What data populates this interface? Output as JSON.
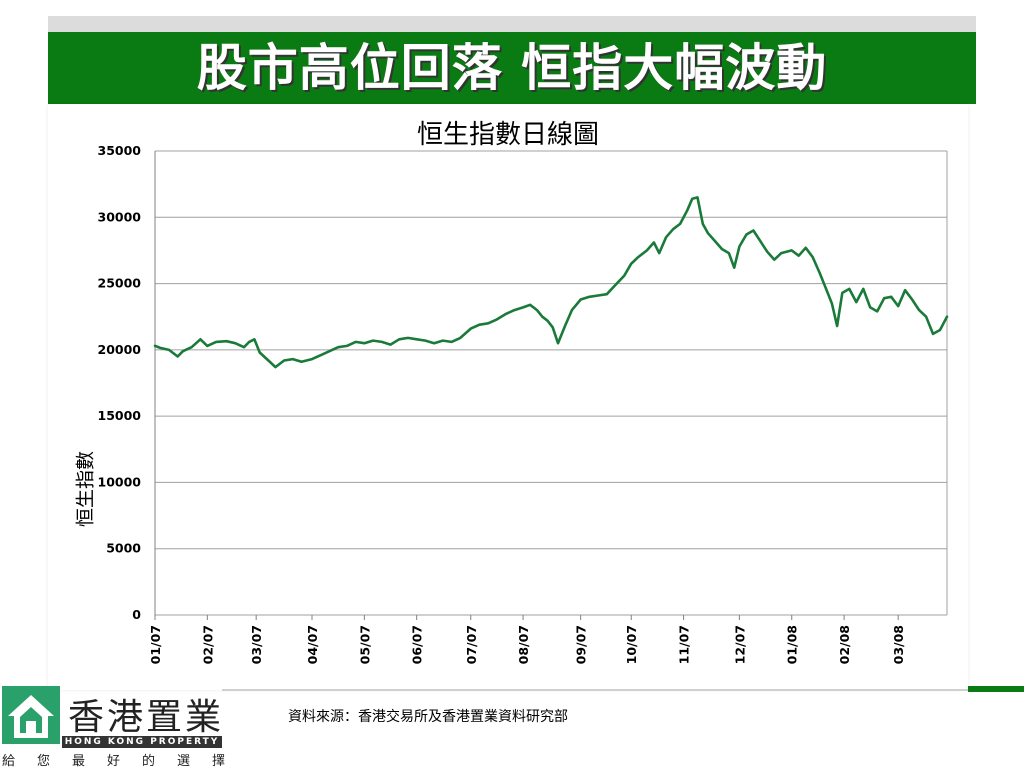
{
  "slide": {
    "title": "股市高位回落  恒指大幅波動",
    "source_note": "資料來源：香港交易所及香港置業資料研究部"
  },
  "logo": {
    "name_cn": "香港置業",
    "name_en": "HONG KONG PROPERTY",
    "slogan": "給您最好的選擇",
    "icon": "house-icon"
  },
  "colors": {
    "title_bar": "#0a7a12",
    "series_line": "#1a7a3a"
  },
  "chart_data": {
    "type": "line",
    "title": "恒生指數日線圖",
    "xlabel": "",
    "ylabel": "恒生指數",
    "ylim": [
      0,
      35000
    ],
    "yticks": [
      0,
      5000,
      10000,
      15000,
      20000,
      25000,
      30000,
      35000
    ],
    "ytick_labels": [
      "0",
      "5000",
      "10000",
      "15000",
      "20000",
      "25000",
      "30000",
      "35000"
    ],
    "xticks": [
      "2007-01-02",
      "2007-02-01",
      "2007-03-01",
      "2007-04-02",
      "2007-05-02",
      "2007-06-01",
      "2007-07-02",
      "2007-08-01",
      "2007-09-03",
      "2007-10-02",
      "2007-11-01",
      "2007-12-03",
      "2008-01-02",
      "2008-02-01",
      "2008-03-03"
    ],
    "xtick_labels": [
      "01/07",
      "02/07",
      "03/07",
      "04/07",
      "05/07",
      "06/07",
      "07/07",
      "08/07",
      "09/07",
      "10/07",
      "11/07",
      "12/07",
      "01/08",
      "02/08",
      "03/08"
    ],
    "xlim": [
      "2007-01-02",
      "2008-03-31"
    ],
    "grid": "horizontal",
    "legend": "none",
    "series": [
      {
        "name": "",
        "points": [
          [
            "2007-01-02",
            20300
          ],
          [
            "2007-01-05",
            20150
          ],
          [
            "2007-01-10",
            20000
          ],
          [
            "2007-01-15",
            19500
          ],
          [
            "2007-01-18",
            19900
          ],
          [
            "2007-01-23",
            20200
          ],
          [
            "2007-01-28",
            20800
          ],
          [
            "2007-02-01",
            20300
          ],
          [
            "2007-02-06",
            20600
          ],
          [
            "2007-02-12",
            20650
          ],
          [
            "2007-02-17",
            20500
          ],
          [
            "2007-02-22",
            20200
          ],
          [
            "2007-02-25",
            20600
          ],
          [
            "2007-02-28",
            20800
          ],
          [
            "2007-03-03",
            19800
          ],
          [
            "2007-03-08",
            19200
          ],
          [
            "2007-03-12",
            18700
          ],
          [
            "2007-03-17",
            19200
          ],
          [
            "2007-03-22",
            19300
          ],
          [
            "2007-03-27",
            19100
          ],
          [
            "2007-04-02",
            19300
          ],
          [
            "2007-04-07",
            19600
          ],
          [
            "2007-04-12",
            19900
          ],
          [
            "2007-04-17",
            20200
          ],
          [
            "2007-04-22",
            20300
          ],
          [
            "2007-04-27",
            20600
          ],
          [
            "2007-05-02",
            20500
          ],
          [
            "2007-05-07",
            20700
          ],
          [
            "2007-05-12",
            20600
          ],
          [
            "2007-05-17",
            20400
          ],
          [
            "2007-05-22",
            20800
          ],
          [
            "2007-05-27",
            20900
          ],
          [
            "2007-06-01",
            20800
          ],
          [
            "2007-06-06",
            20700
          ],
          [
            "2007-06-11",
            20500
          ],
          [
            "2007-06-16",
            20700
          ],
          [
            "2007-06-21",
            20600
          ],
          [
            "2007-06-26",
            20900
          ],
          [
            "2007-07-02",
            21600
          ],
          [
            "2007-07-07",
            21900
          ],
          [
            "2007-07-12",
            22000
          ],
          [
            "2007-07-17",
            22300
          ],
          [
            "2007-07-22",
            22700
          ],
          [
            "2007-07-27",
            23000
          ],
          [
            "2007-08-01",
            23200
          ],
          [
            "2007-08-05",
            23400
          ],
          [
            "2007-08-09",
            23000
          ],
          [
            "2007-08-12",
            22500
          ],
          [
            "2007-08-15",
            22200
          ],
          [
            "2007-08-18",
            21700
          ],
          [
            "2007-08-21",
            20500
          ],
          [
            "2007-08-25",
            21800
          ],
          [
            "2007-08-29",
            23000
          ],
          [
            "2007-09-03",
            23800
          ],
          [
            "2007-09-08",
            24000
          ],
          [
            "2007-09-13",
            24100
          ],
          [
            "2007-09-18",
            24200
          ],
          [
            "2007-09-23",
            24900
          ],
          [
            "2007-09-28",
            25600
          ],
          [
            "2007-10-02",
            26500
          ],
          [
            "2007-10-06",
            27000
          ],
          [
            "2007-10-11",
            27500
          ],
          [
            "2007-10-15",
            28100
          ],
          [
            "2007-10-18",
            27300
          ],
          [
            "2007-10-22",
            28500
          ],
          [
            "2007-10-26",
            29100
          ],
          [
            "2007-10-30",
            29500
          ],
          [
            "2007-11-03",
            30500
          ],
          [
            "2007-11-06",
            31400
          ],
          [
            "2007-11-09",
            31500
          ],
          [
            "2007-11-12",
            29500
          ],
          [
            "2007-11-15",
            28800
          ],
          [
            "2007-11-19",
            28200
          ],
          [
            "2007-11-23",
            27600
          ],
          [
            "2007-11-27",
            27300
          ],
          [
            "2007-11-30",
            26200
          ],
          [
            "2007-12-03",
            27800
          ],
          [
            "2007-12-07",
            28700
          ],
          [
            "2007-12-11",
            29000
          ],
          [
            "2007-12-15",
            28200
          ],
          [
            "2007-12-19",
            27400
          ],
          [
            "2007-12-23",
            26800
          ],
          [
            "2007-12-27",
            27300
          ],
          [
            "2008-01-02",
            27500
          ],
          [
            "2008-01-06",
            27100
          ],
          [
            "2008-01-10",
            27700
          ],
          [
            "2008-01-14",
            27000
          ],
          [
            "2008-01-18",
            25800
          ],
          [
            "2008-01-22",
            24500
          ],
          [
            "2008-01-25",
            23500
          ],
          [
            "2008-01-28",
            21800
          ],
          [
            "2008-01-31",
            24300
          ],
          [
            "2008-02-04",
            24600
          ],
          [
            "2008-02-08",
            23600
          ],
          [
            "2008-02-12",
            24600
          ],
          [
            "2008-02-16",
            23200
          ],
          [
            "2008-02-20",
            22900
          ],
          [
            "2008-02-24",
            23900
          ],
          [
            "2008-02-28",
            24000
          ],
          [
            "2008-03-03",
            23300
          ],
          [
            "2008-03-07",
            24500
          ],
          [
            "2008-03-11",
            23800
          ],
          [
            "2008-03-15",
            23000
          ],
          [
            "2008-03-19",
            22500
          ],
          [
            "2008-03-23",
            21200
          ],
          [
            "2008-03-27",
            21500
          ],
          [
            "2008-03-31",
            22500
          ]
        ]
      }
    ]
  }
}
